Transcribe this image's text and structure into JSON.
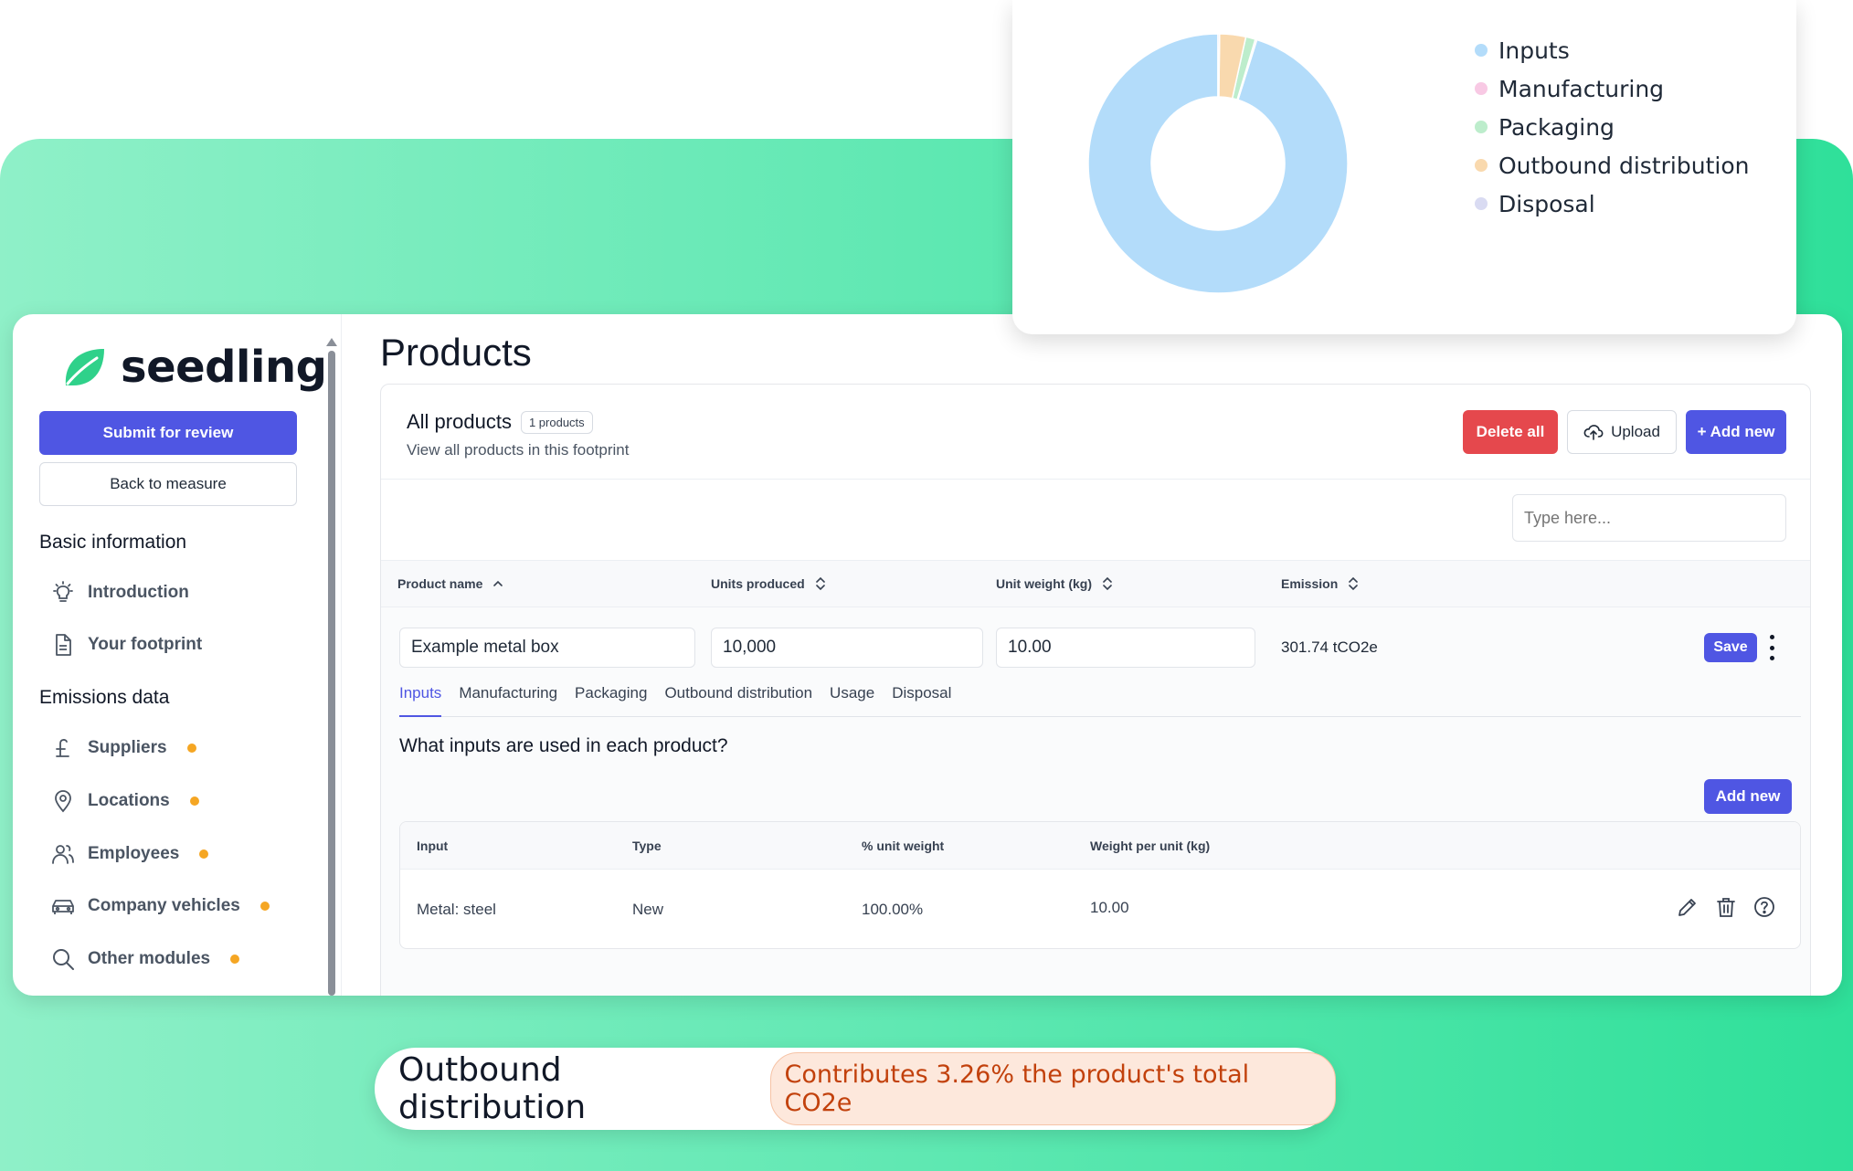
{
  "brand": {
    "name": "seedling",
    "accent": "#4f56e3",
    "leaf_color": "#2fd18a"
  },
  "sidebar": {
    "submit_label": "Submit for review",
    "back_label": "Back to measure",
    "sections": [
      {
        "title": "Basic information",
        "items": [
          {
            "label": "Introduction",
            "icon": "lightbulb-icon",
            "pending": false
          },
          {
            "label": "Your footprint",
            "icon": "document-icon",
            "pending": false
          }
        ]
      },
      {
        "title": "Emissions data",
        "items": [
          {
            "label": "Suppliers",
            "icon": "pound-icon",
            "pending": true
          },
          {
            "label": "Locations",
            "icon": "location-pin-icon",
            "pending": true
          },
          {
            "label": "Employees",
            "icon": "users-icon",
            "pending": true
          },
          {
            "label": "Company vehicles",
            "icon": "car-icon",
            "pending": true
          },
          {
            "label": "Other modules",
            "icon": "search-icon",
            "pending": true
          }
        ]
      }
    ]
  },
  "main": {
    "page_title": "Products",
    "panel": {
      "title": "All products",
      "count_badge": "1 products",
      "subtitle": "View all products in this footprint",
      "delete_all_label": "Delete all",
      "upload_label": "Upload",
      "add_new_label": "+ Add new",
      "search_placeholder": "Type here..."
    },
    "table": {
      "columns": [
        "Product name",
        "Units produced",
        "Unit weight (kg)",
        "Emission"
      ],
      "row": {
        "product_name": "Example metal box",
        "units_produced": "10,000",
        "unit_weight": "10.00",
        "emission": "301.74 tCO2e",
        "save_label": "Save"
      }
    },
    "tabs": [
      "Inputs",
      "Manufacturing",
      "Packaging",
      "Outbound distribution",
      "Usage",
      "Disposal"
    ],
    "active_tab": "Inputs",
    "question": "What inputs are used in each product?",
    "add_new_small_label": "Add new",
    "inputs_table": {
      "columns": [
        "Input",
        "Type",
        "% unit weight",
        "Weight per unit (kg)"
      ],
      "rows": [
        {
          "input": "Metal: steel",
          "type": "New",
          "pct": "100.00%",
          "weight": "10.00"
        }
      ]
    }
  },
  "chart_data": {
    "type": "pie",
    "donut": true,
    "legend_position": "right",
    "categories": [
      "Inputs",
      "Manufacturing",
      "Packaging",
      "Outbound distribution",
      "Disposal"
    ],
    "values": [
      95.4,
      0.2,
      1.2,
      3.26,
      0.2
    ],
    "colors": [
      "#b3dcfa",
      "#f8c9e4",
      "#bdedcc",
      "#f9d9ae",
      "#d9dbf2"
    ]
  },
  "callout": {
    "title": "Outbound distribution",
    "text": "Contributes 3.26% the product's total CO2e"
  }
}
